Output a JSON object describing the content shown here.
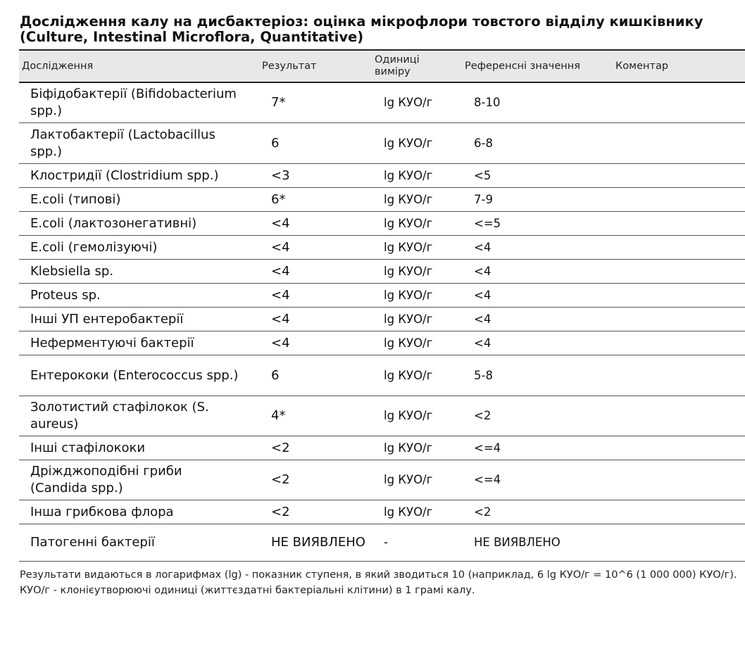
{
  "title": "Дослідження калу на дисбактеріоз: оцінка мікрофлори товстого відділу кишківнику (Culture, Intestinal Microflora, Quantitative)",
  "headers": {
    "test": "Дослідження",
    "result": "Результат",
    "unit": "Одиниці виміру",
    "reference": "Референсні значення",
    "comment": "Коментар"
  },
  "rows": [
    {
      "name": "Біфідобактерії (Bifidobacterium spp.)",
      "result": "7*",
      "unit": "lg КУО/г",
      "reference": "8-10",
      "comment": ""
    },
    {
      "name": "Лактобактерії (Lactobacillus spp.)",
      "result": "6",
      "unit": "lg КУО/г",
      "reference": "6-8",
      "comment": ""
    },
    {
      "name": "Клостридії (Clostridium spp.)",
      "result": "<3",
      "unit": "lg КУО/г",
      "reference": "<5",
      "comment": ""
    },
    {
      "name": "E.coli (типові)",
      "result": "6*",
      "unit": "lg КУО/г",
      "reference": "7-9",
      "comment": ""
    },
    {
      "name": "E.coli (лактозонегативні)",
      "result": "<4",
      "unit": "lg КУО/г",
      "reference": "<=5",
      "comment": ""
    },
    {
      "name": "E.coli (гемолізуючі)",
      "result": "<4",
      "unit": "lg КУО/г",
      "reference": "<4",
      "comment": ""
    },
    {
      "name": "Klebsiella sp.",
      "result": "<4",
      "unit": "lg КУО/г",
      "reference": "<4",
      "comment": ""
    },
    {
      "name": "Proteus sp.",
      "result": "<4",
      "unit": "lg КУО/г",
      "reference": "<4",
      "comment": ""
    },
    {
      "name": "Інші УП ентеробактерії",
      "result": "<4",
      "unit": "lg КУО/г",
      "reference": "<4",
      "comment": ""
    },
    {
      "name": "Неферментуючі бактерії",
      "result": "<4",
      "unit": "lg КУО/г",
      "reference": "<4",
      "comment": ""
    },
    {
      "name": "Ентерококи (Enterococcus spp.)",
      "result": "6",
      "unit": "lg КУО/г",
      "reference": "5-8",
      "comment": ""
    },
    {
      "name": "Золотистий стафілокок (S. aureus)",
      "result": "4*",
      "unit": "lg КУО/г",
      "reference": "<2",
      "comment": ""
    },
    {
      "name": "Інші стафілококи",
      "result": "<2",
      "unit": "lg КУО/г",
      "reference": "<=4",
      "comment": ""
    },
    {
      "name": "Дріжджоподібні гриби (Candida spp.)",
      "result": "<2",
      "unit": "lg КУО/г",
      "reference": "<=4",
      "comment": ""
    },
    {
      "name": "Інша грибкова флора",
      "result": "<2",
      "unit": "lg КУО/г",
      "reference": "<2",
      "comment": ""
    },
    {
      "name": "Патогенні бактерії",
      "result": "НЕ ВИЯВЛЕНО",
      "unit": "-",
      "reference": "НЕ ВИЯВЛЕНО",
      "comment": ""
    }
  ],
  "notes": [
    "Результати видаються в логарифмах (lg) - показник ступеня, в який зводиться 10 (наприклад, 6 lg КУО/г = 10^6 (1 000 000) КУО/г).",
    "КУО/г - клонієутворюючі одиниці (життєздатні бактеріальні клітини) в 1 грамі калу."
  ]
}
